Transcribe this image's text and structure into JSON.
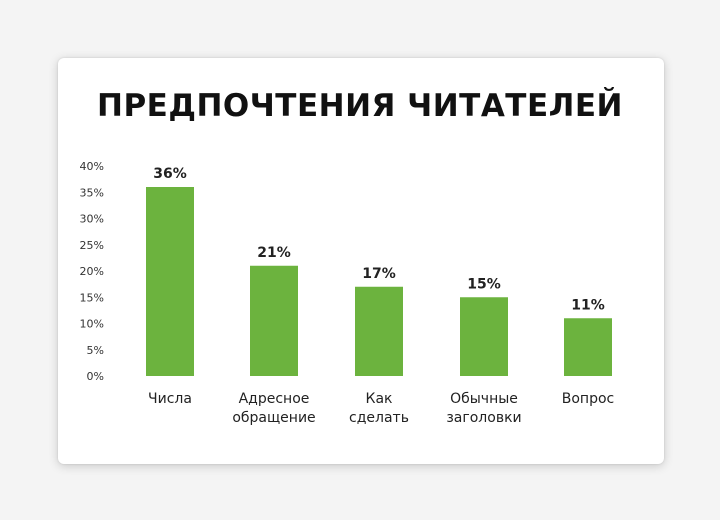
{
  "chart_data": {
    "type": "bar",
    "title": "ПРЕДПОЧТЕНИЯ ЧИТАТЕЛЕЙ",
    "categories": [
      [
        "Числа"
      ],
      [
        "Адресное",
        "обращение"
      ],
      [
        "Как",
        "сделать"
      ],
      [
        "Обычные",
        "заголовки"
      ],
      [
        "Вопрос"
      ]
    ],
    "values": [
      36,
      21,
      17,
      15,
      11
    ],
    "value_labels": [
      "36%",
      "21%",
      "17%",
      "15%",
      "11%"
    ],
    "y_ticks": [
      "0%",
      "5%",
      "10%",
      "15%",
      "20%",
      "25%",
      "30%",
      "35%",
      "40%"
    ],
    "ylim": [
      0,
      40
    ],
    "grid": false,
    "bar_color": "#6cb33e"
  }
}
